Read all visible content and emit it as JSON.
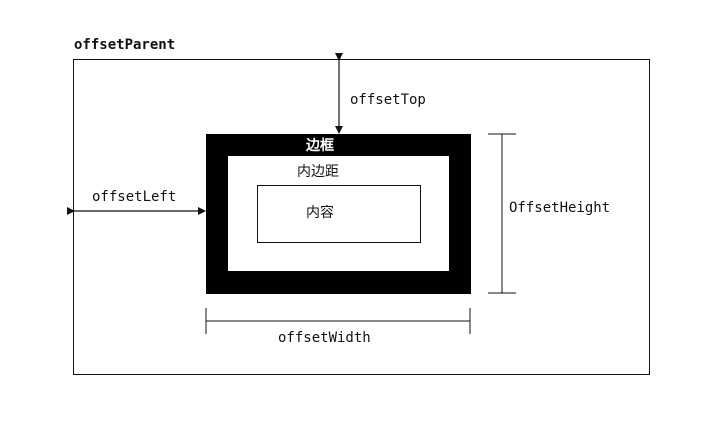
{
  "diagram": {
    "parent_label": "offsetParent",
    "border_label": "边框",
    "padding_label": "内边距",
    "content_label": "内容",
    "offset_top_label": "offsetTop",
    "offset_left_label": "offsetLeft",
    "offset_height_label": "OffsetHeight",
    "offset_width_label": "offsetWidth"
  },
  "colors": {
    "border_fill": "#000000",
    "line": "#111111",
    "background": "#ffffff"
  }
}
